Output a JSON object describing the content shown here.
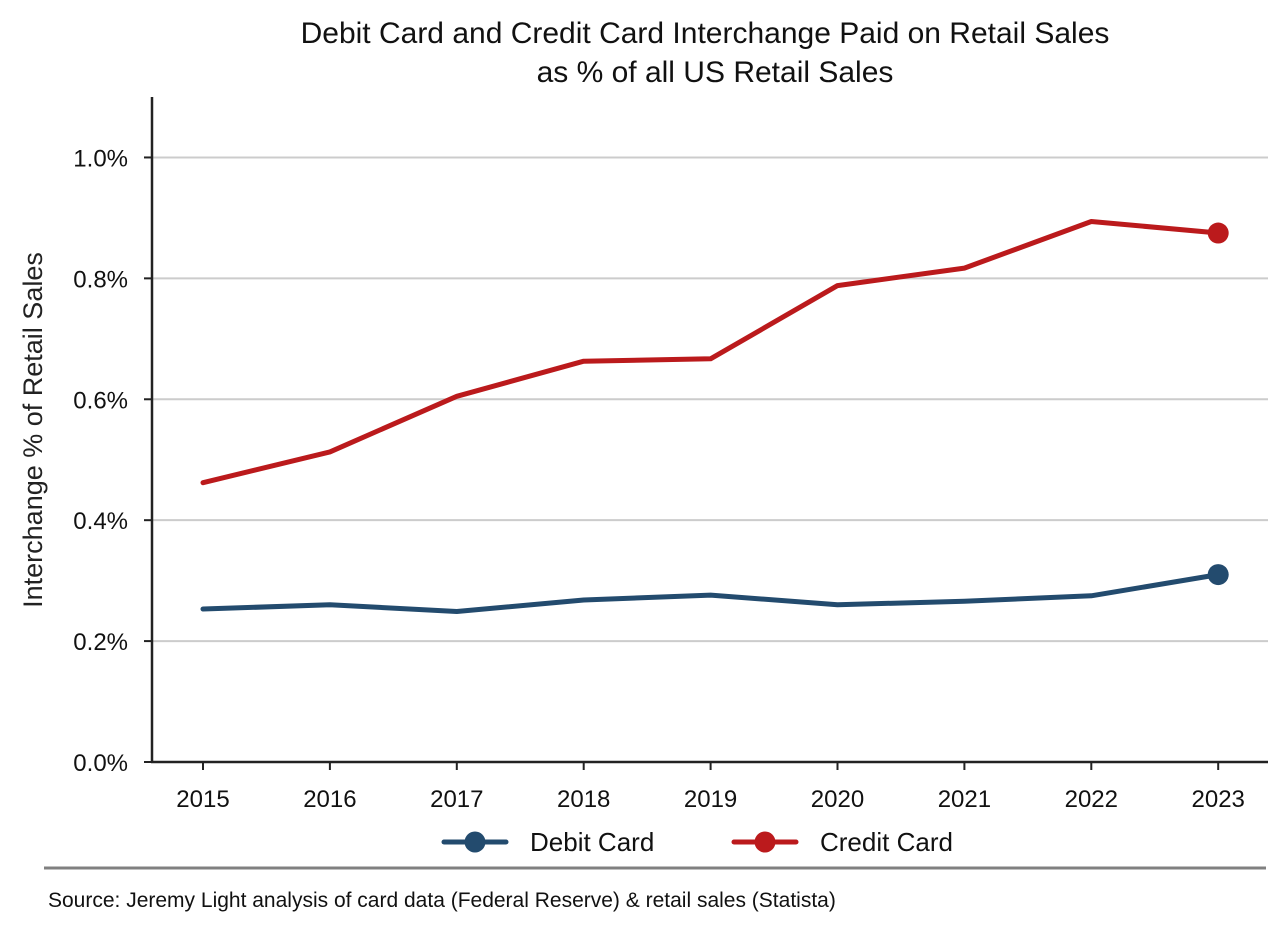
{
  "chart_data": {
    "type": "line",
    "title": "Debit Card and Credit Card Interchange Paid on Retail Sales",
    "subtitle": "as % of all US Retail Sales",
    "xlabel": "",
    "ylabel": "Interchange % of Retail Sales",
    "x": [
      "2015",
      "2016",
      "2017",
      "2018",
      "2019",
      "2020",
      "2021",
      "2022",
      "2023"
    ],
    "ylim": [
      0,
      1.1
    ],
    "yticks": [
      0.0,
      0.2,
      0.4,
      0.6,
      0.8,
      1.0
    ],
    "ytick_labels": [
      "0.0%",
      "0.2%",
      "0.4%",
      "0.6%",
      "0.8%",
      "1.0%"
    ],
    "grid": "horizontal",
    "legend_position": "bottom-center",
    "series": [
      {
        "name": "Debit Card",
        "color": "#234B6E",
        "values": [
          0.253,
          0.26,
          0.249,
          0.268,
          0.276,
          0.26,
          0.266,
          0.275,
          0.31
        ],
        "end_marker": true
      },
      {
        "name": "Credit Card",
        "color": "#BB1A1C",
        "values": [
          0.462,
          0.513,
          0.605,
          0.663,
          0.667,
          0.788,
          0.817,
          0.894,
          0.875
        ],
        "end_marker": true
      }
    ],
    "source": "Source: Jeremy Light analysis of card data (Federal Reserve) & retail sales (Statista)"
  }
}
